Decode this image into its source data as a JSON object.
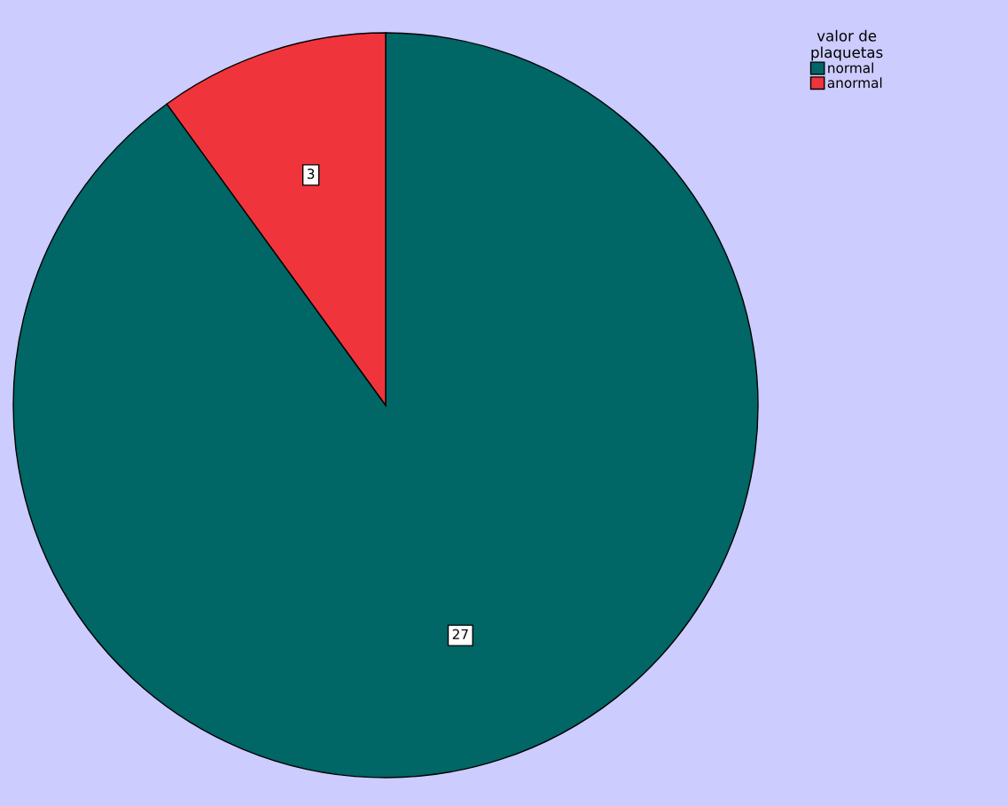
{
  "chart_data": {
    "type": "pie",
    "legend_title": "valor de\nplaquetas",
    "categories": [
      "normal",
      "anormal"
    ],
    "values": [
      27,
      3
    ],
    "colors": [
      "#006666",
      "#f0343c"
    ],
    "data_labels": true,
    "legend": "top right"
  }
}
